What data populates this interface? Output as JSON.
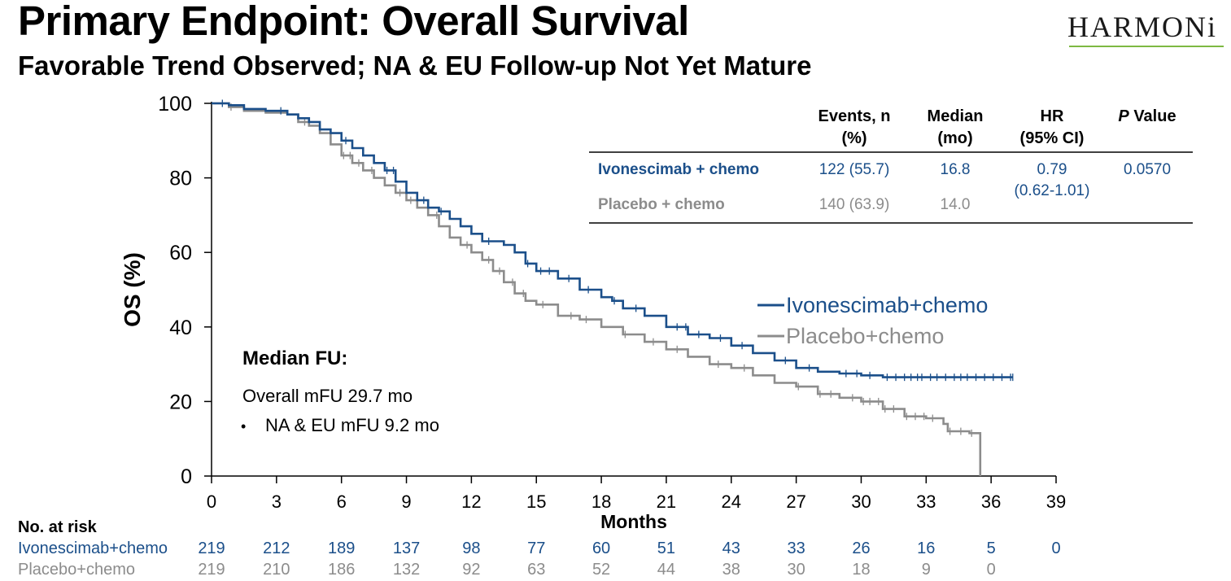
{
  "header": {
    "title": "Primary Endpoint: Overall Survival",
    "subtitle": "Favorable Trend Observed; NA & EU Follow-up Not Yet Mature",
    "logo_text": "HARMONi"
  },
  "colors": {
    "ivo": "#1b4f8a",
    "placebo": "#8c8c8c",
    "text": "#000000"
  },
  "chart_data": {
    "type": "line",
    "ylabel": "OS (%)",
    "xlabel": "Months",
    "xlim": [
      0,
      39
    ],
    "ylim": [
      0,
      100
    ],
    "xticks": [
      0,
      3,
      6,
      9,
      12,
      15,
      18,
      21,
      24,
      27,
      30,
      33,
      36,
      39
    ],
    "yticks": [
      0,
      20,
      40,
      60,
      80,
      100
    ],
    "legend_position": "right-middle",
    "series": [
      {
        "name": "Ivonescimab+chemo",
        "color": "#1b4f8a",
        "points": [
          [
            0,
            100
          ],
          [
            0.8,
            99.5
          ],
          [
            1.5,
            98.5
          ],
          [
            2.5,
            98
          ],
          [
            3.5,
            97
          ],
          [
            4,
            96
          ],
          [
            4.5,
            95
          ],
          [
            5,
            93
          ],
          [
            5.5,
            92
          ],
          [
            6,
            90
          ],
          [
            6.5,
            88
          ],
          [
            7,
            86
          ],
          [
            7.5,
            84
          ],
          [
            8,
            82
          ],
          [
            8.5,
            79
          ],
          [
            9,
            76
          ],
          [
            9.5,
            74
          ],
          [
            10,
            72
          ],
          [
            10.5,
            71
          ],
          [
            11,
            69
          ],
          [
            11.5,
            67
          ],
          [
            12,
            65
          ],
          [
            12.5,
            63
          ],
          [
            13.5,
            62
          ],
          [
            14,
            60
          ],
          [
            14.5,
            57
          ],
          [
            15,
            55
          ],
          [
            16,
            53
          ],
          [
            17,
            50
          ],
          [
            18,
            48
          ],
          [
            18.5,
            47
          ],
          [
            19,
            45
          ],
          [
            20,
            43
          ],
          [
            21,
            40
          ],
          [
            22,
            38
          ],
          [
            23,
            37
          ],
          [
            24,
            35
          ],
          [
            25,
            33
          ],
          [
            26,
            31
          ],
          [
            27,
            29
          ],
          [
            28,
            28
          ],
          [
            29,
            27.5
          ],
          [
            30,
            27
          ],
          [
            31,
            26.5
          ],
          [
            37,
            26.5
          ]
        ],
        "censor_months": [
          0.5,
          3.2,
          6.2,
          8.1,
          8.4,
          9.8,
          10.6,
          12.8,
          14.6,
          15.2,
          15.6,
          16.5,
          17.4,
          18.6,
          19.6,
          21.5,
          21.9,
          22.5,
          23.5,
          24.5,
          26.5,
          27.6,
          29.3,
          29.8,
          30.4,
          31.2,
          31.6,
          32,
          32.3,
          32.6,
          32.8,
          33.2,
          33.5,
          33.9,
          34.3,
          34.6,
          34.9,
          35.3,
          35.7,
          36.1,
          36.5,
          36.9,
          37
        ]
      },
      {
        "name": "Placebo+chemo",
        "color": "#8c8c8c",
        "points": [
          [
            0,
            100
          ],
          [
            0.8,
            99
          ],
          [
            1.5,
            98
          ],
          [
            2.5,
            97.5
          ],
          [
            3.5,
            97
          ],
          [
            4,
            95
          ],
          [
            4.5,
            94
          ],
          [
            5,
            92
          ],
          [
            5.5,
            89
          ],
          [
            6,
            86
          ],
          [
            6.5,
            84
          ],
          [
            7,
            82
          ],
          [
            7.5,
            80
          ],
          [
            8,
            78
          ],
          [
            8.5,
            76
          ],
          [
            9,
            74
          ],
          [
            9.5,
            72
          ],
          [
            10,
            70
          ],
          [
            10.5,
            67
          ],
          [
            11,
            64
          ],
          [
            11.5,
            62
          ],
          [
            12,
            60
          ],
          [
            12.5,
            58
          ],
          [
            13,
            55
          ],
          [
            13.5,
            52
          ],
          [
            14,
            49
          ],
          [
            14.5,
            47
          ],
          [
            15,
            46
          ],
          [
            16,
            43
          ],
          [
            17,
            42
          ],
          [
            18,
            40
          ],
          [
            19,
            38
          ],
          [
            20,
            36
          ],
          [
            21,
            34
          ],
          [
            22,
            32
          ],
          [
            23,
            30
          ],
          [
            24,
            29
          ],
          [
            25,
            27
          ],
          [
            26,
            25
          ],
          [
            27,
            24
          ],
          [
            28,
            22
          ],
          [
            29,
            21
          ],
          [
            30,
            20
          ],
          [
            31,
            18
          ],
          [
            32,
            16
          ],
          [
            33,
            15.5
          ],
          [
            33.8,
            14
          ],
          [
            34,
            12
          ],
          [
            35,
            11.5
          ],
          [
            35.5,
            11.5
          ],
          [
            35.5,
            0
          ]
        ],
        "censor_months": [
          0.9,
          4.3,
          6.1,
          6.4,
          6.8,
          7.4,
          8.7,
          9.2,
          10.4,
          11.8,
          12.8,
          13.3,
          13.9,
          14.4,
          15.3,
          16.6,
          17.3,
          19.1,
          20.4,
          21.5,
          23.4,
          24.6,
          27.1,
          28.1,
          28.6,
          29.6,
          30.1,
          30.4,
          30.8,
          31.1,
          31.5,
          32.1,
          32.5,
          32.9,
          33.3,
          34.1,
          34.6,
          35.1
        ]
      }
    ],
    "legend": [
      "Ivonescimab+chemo",
      "Placebo+chemo"
    ],
    "stats_table": {
      "headers": [
        {
          "line1": "Events, n",
          "line2": "(%)"
        },
        {
          "line1": "Median",
          "line2": "(mo)"
        },
        {
          "line1": "HR",
          "line2": "(95% CI)"
        },
        {
          "line1_italic": "P",
          "line1_rest": " Value",
          "line2": ""
        }
      ],
      "rows": [
        {
          "label": "Ivonescimab + chemo",
          "events": "122 (55.7)",
          "median": "16.8"
        },
        {
          "label": "Placebo + chemo",
          "events": "140 (63.9)",
          "median": "14.0"
        }
      ],
      "hr_line1": "0.79",
      "hr_line2": "(0.62-1.01)",
      "p_value": "0.0570"
    },
    "annotation": {
      "title": "Median FU:",
      "line1": "Overall mFU 29.7 mo",
      "bullet": "•",
      "line2": "NA & EU mFU 9.2 mo"
    },
    "at_risk": {
      "title": "No. at risk",
      "rows": [
        {
          "name": "Ivonescimab+chemo",
          "values": [
            "219",
            "212",
            "189",
            "137",
            "98",
            "77",
            "60",
            "51",
            "43",
            "33",
            "26",
            "16",
            "5",
            "0"
          ]
        },
        {
          "name": "Placebo+chemo",
          "values": [
            "219",
            "210",
            "186",
            "132",
            "92",
            "63",
            "52",
            "44",
            "38",
            "30",
            "18",
            "9",
            "0"
          ]
        }
      ]
    }
  }
}
